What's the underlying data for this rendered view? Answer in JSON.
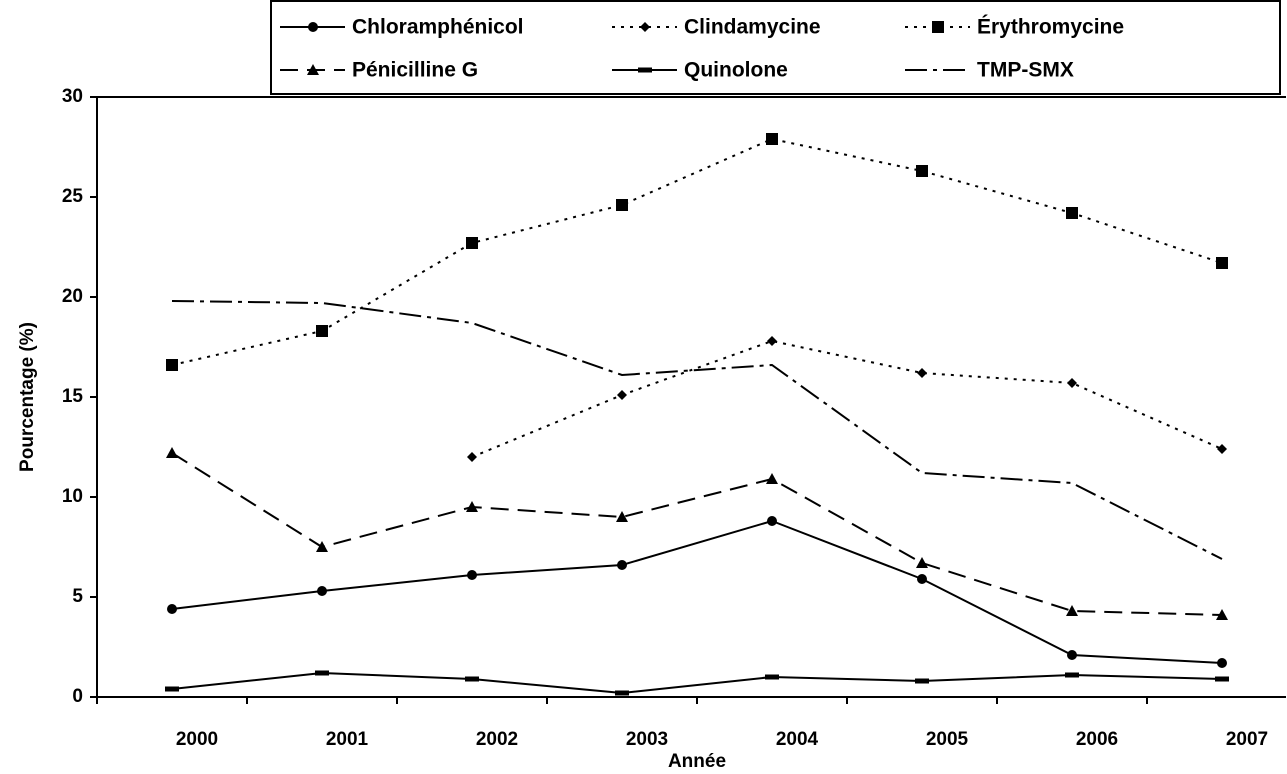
{
  "chart_data": {
    "type": "line",
    "categories": [
      "2000",
      "2001",
      "2002",
      "2003",
      "2004",
      "2005",
      "2006",
      "2007"
    ],
    "x_label": "Année",
    "y_label": "Pourcentage (%)",
    "ylim": [
      0,
      30
    ],
    "yticks": [
      0,
      5,
      10,
      15,
      20,
      25,
      30
    ],
    "grid": false,
    "legend": "top",
    "series": [
      {
        "name": "Chloramphénicol",
        "color": "#000000",
        "marker": "circle",
        "dash": "solid",
        "values": [
          4.4,
          5.3,
          6.1,
          6.6,
          8.8,
          5.9,
          2.1,
          1.7
        ]
      },
      {
        "name": "Clindamycine",
        "color": "#000000",
        "marker": "diamond",
        "dash": "dotted",
        "values": [
          null,
          null,
          12.0,
          15.1,
          17.8,
          16.2,
          15.7,
          12.4
        ]
      },
      {
        "name": "Érythromycine",
        "color": "#000000",
        "marker": "square",
        "dash": "dotted",
        "values": [
          16.6,
          18.3,
          22.7,
          24.6,
          27.9,
          26.3,
          24.2,
          21.7
        ]
      },
      {
        "name": "Pénicilline G",
        "color": "#000000",
        "marker": "triangle",
        "dash": "dashed",
        "values": [
          12.2,
          7.5,
          9.5,
          9.0,
          10.9,
          6.7,
          4.3,
          4.1
        ]
      },
      {
        "name": "Quinolone",
        "color": "#000000",
        "marker": "bar",
        "dash": "solid",
        "values": [
          0.4,
          1.2,
          0.9,
          0.2,
          1.0,
          0.8,
          1.1,
          0.9
        ]
      },
      {
        "name": "TMP-SMX",
        "color": "#000000",
        "marker": "none",
        "dash": "dashdot",
        "values": [
          19.8,
          19.7,
          18.7,
          16.1,
          16.6,
          11.2,
          10.7,
          6.9
        ]
      }
    ]
  }
}
